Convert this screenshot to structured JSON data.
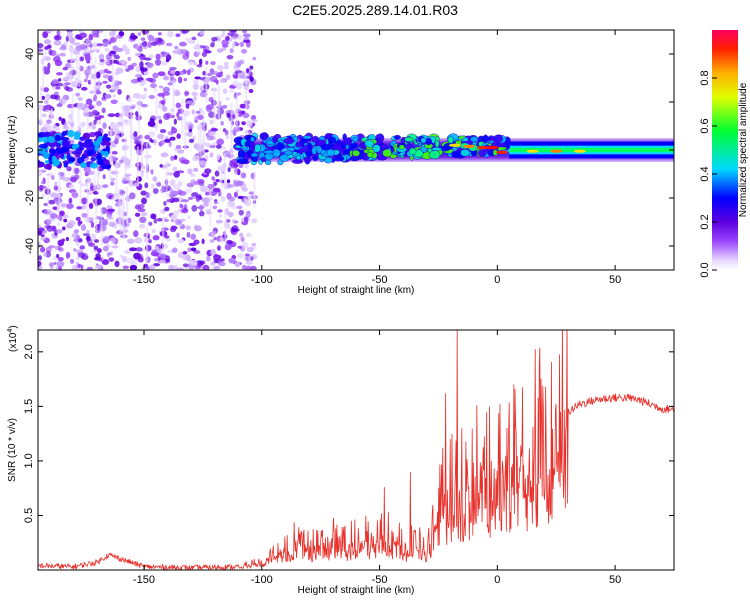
{
  "title": "C2E5.2025.289.14.01.R03",
  "colors": {
    "snr_line": "#e8302a",
    "axis": "#000000"
  },
  "chart_data": [
    {
      "type": "heatmap",
      "title": "C2E5.2025.289.14.01.R03",
      "xlabel": "Height of straight line (km)",
      "ylabel": "Frequency (Hz)",
      "xlim": [
        -195,
        75
      ],
      "ylim": [
        -50,
        50
      ],
      "x_ticks": [
        -150,
        -100,
        -50,
        0,
        50
      ],
      "y_ticks": [
        -40,
        -20,
        0,
        20,
        40
      ],
      "colormap": "rainbow (purple → blue → cyan → green → yellow → red)",
      "colorbar": {
        "label": "Normalized spectral amplitude",
        "range": [
          0.0,
          1.0
        ],
        "ticks": [
          0.0,
          0.2,
          0.4,
          0.6,
          0.8
        ]
      }
    },
    {
      "type": "line",
      "xlabel": "Height of straight line (km)",
      "ylabel": "SNR (10 * v/v)",
      "y_multiplier": "(x10",
      "y_multiplier_exp": "4",
      "xlim": [
        -195,
        75
      ],
      "ylim": [
        0,
        2.2
      ],
      "x_ticks": [
        -150,
        -100,
        -50,
        0,
        50
      ],
      "y_ticks": [
        0.5,
        1.0,
        1.5,
        2.0
      ],
      "series": [
        {
          "x": [
            -195,
            -180,
            -170,
            -165,
            -150,
            -130,
            -110,
            -100,
            -95,
            -90,
            -85,
            -80,
            -75,
            -70,
            -65,
            -60,
            -55,
            -50,
            -45,
            -40,
            -35,
            -30,
            -27,
            -25,
            -22,
            -20,
            -18,
            -15,
            -12,
            -10,
            -8,
            -5,
            0,
            5,
            8,
            10,
            15,
            20,
            25,
            30,
            35,
            40,
            45,
            50,
            55,
            60,
            65,
            70,
            75
          ],
          "y": [
            0.04,
            0.03,
            0.07,
            0.14,
            0.03,
            0.02,
            0.03,
            0.08,
            0.15,
            0.22,
            0.28,
            0.22,
            0.25,
            0.3,
            0.27,
            0.28,
            0.3,
            0.35,
            0.3,
            0.25,
            0.25,
            0.2,
            0.4,
            0.55,
            0.75,
            0.8,
            0.95,
            0.75,
            0.9,
            0.95,
            1.0,
            0.95,
            1.05,
            1.1,
            1.0,
            1.1,
            1.2,
            1.25,
            1.35,
            1.45,
            1.52,
            1.55,
            1.57,
            1.58,
            1.58,
            1.56,
            1.52,
            1.48,
            1.47
          ]
        }
      ],
      "peaks": [
        {
          "x": -48,
          "y": 0.76
        },
        {
          "x": -37,
          "y": 0.9
        },
        {
          "x": -22,
          "y": 1.62
        },
        {
          "x": -20,
          "y": 1.2
        },
        {
          "x": -17,
          "y": 2.2
        },
        {
          "x": -15,
          "y": 1.3
        },
        {
          "x": 7,
          "y": 1.7
        }
      ]
    }
  ]
}
